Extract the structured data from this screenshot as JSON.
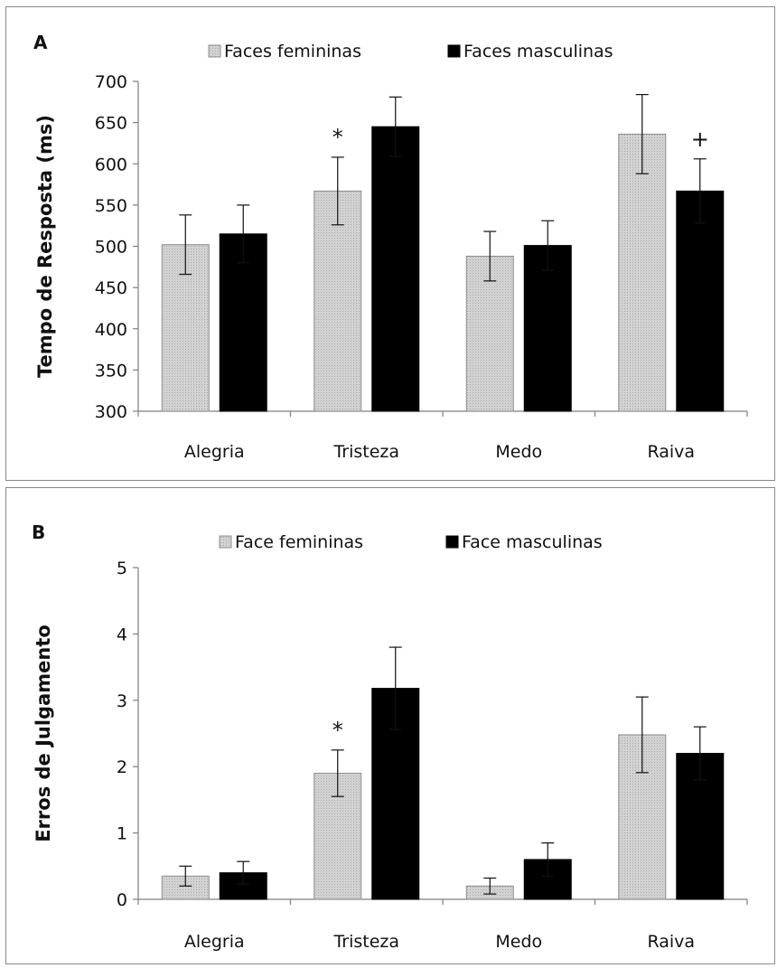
{
  "chart_data": [
    {
      "panel_label": "A",
      "type": "bar",
      "ylabel": "Tempo de Resposta (ms)",
      "xlabel": "",
      "ylim": [
        300,
        700
      ],
      "yticks": [
        300,
        350,
        400,
        450,
        500,
        550,
        600,
        650,
        700
      ],
      "grid": false,
      "legend_position": "top",
      "categories": [
        "Alegria",
        "Tristeza",
        "Medo",
        "Raiva"
      ],
      "series": [
        {
          "name": "Faces femininas",
          "color": "#c8c8c8",
          "values": [
            502,
            567,
            488,
            636
          ],
          "errors": [
            36,
            41,
            30,
            48
          ]
        },
        {
          "name": "Faces masculinas",
          "color": "#000000",
          "values": [
            515,
            645,
            501,
            567
          ],
          "errors": [
            35,
            36,
            30,
            39
          ]
        }
      ],
      "annotations": [
        {
          "text": "*",
          "category": "Tristeza",
          "series": 0
        },
        {
          "text": "+",
          "category": "Raiva",
          "series": 1
        }
      ]
    },
    {
      "panel_label": "B",
      "type": "bar",
      "ylabel": "Erros de Julgamento",
      "xlabel": "",
      "ylim": [
        0,
        5
      ],
      "yticks": [
        0,
        1,
        2,
        3,
        4,
        5
      ],
      "grid": false,
      "legend_position": "top",
      "categories": [
        "Alegria",
        "Tristeza",
        "Medo",
        "Raiva"
      ],
      "series": [
        {
          "name": "Face femininas",
          "color": "#c8c8c8",
          "values": [
            0.35,
            1.9,
            0.2,
            2.48
          ],
          "errors": [
            0.15,
            0.35,
            0.12,
            0.57
          ]
        },
        {
          "name": "Face masculinas",
          "color": "#000000",
          "values": [
            0.4,
            3.18,
            0.6,
            2.2
          ],
          "errors": [
            0.17,
            0.62,
            0.25,
            0.4
          ]
        }
      ],
      "annotations": [
        {
          "text": "*",
          "category": "Tristeza",
          "series": 0
        }
      ]
    }
  ]
}
